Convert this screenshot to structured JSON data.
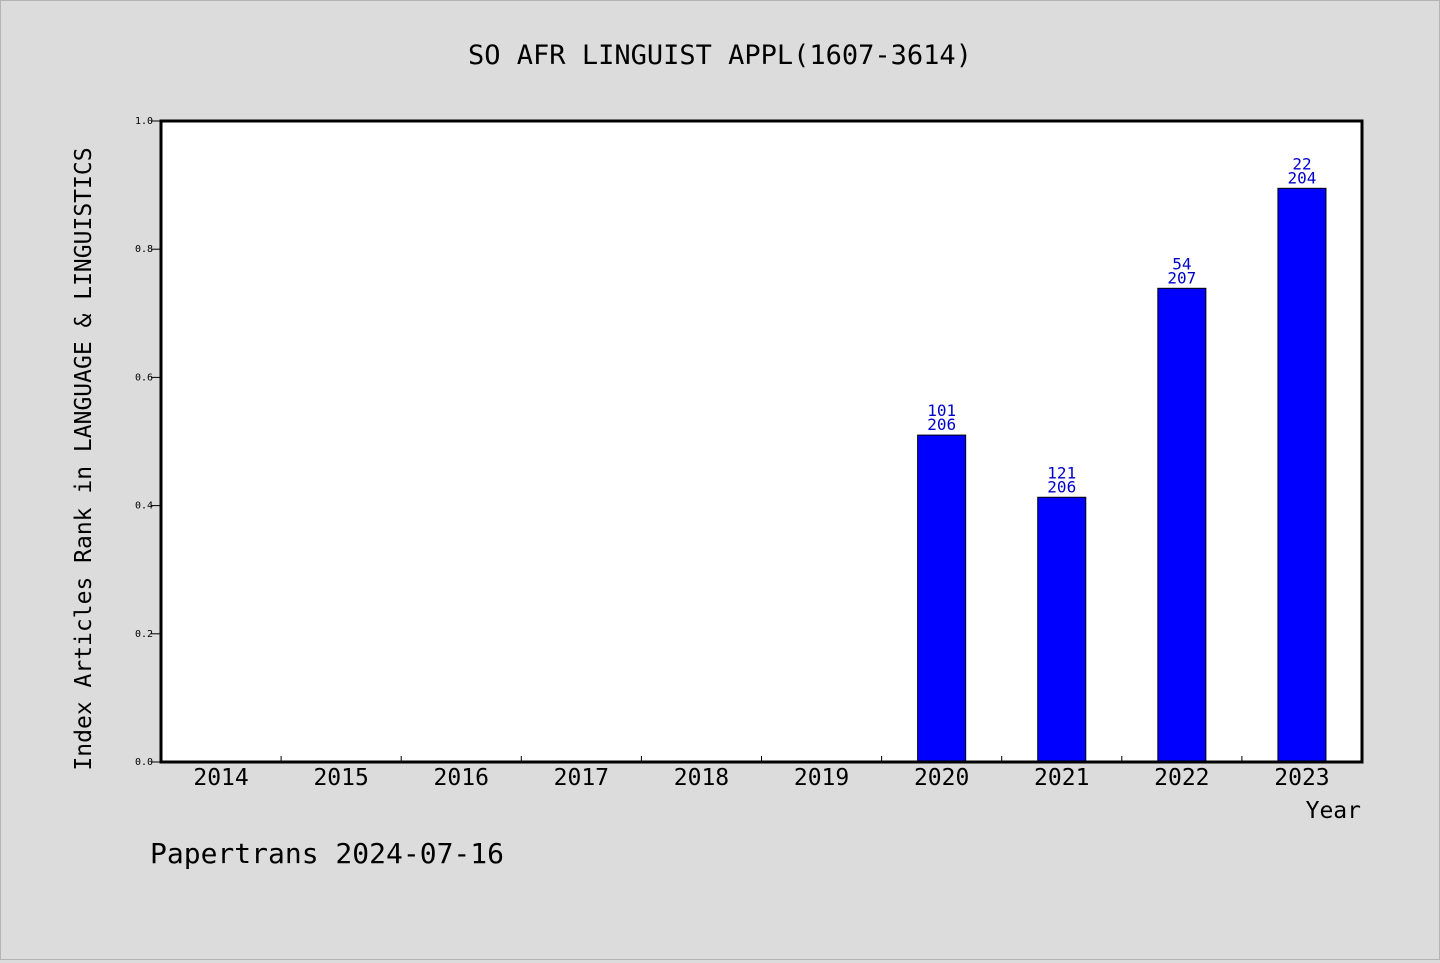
{
  "chart_data": {
    "type": "bar",
    "title": "SO AFR LINGUIST APPL(1607-3614)",
    "xlabel": "Year",
    "ylabel": "Index Articles Rank in LANGUAGE & LINGUISTICS",
    "ylim": [
      0,
      1.0
    ],
    "yticks": [
      "0.0",
      "0.2",
      "0.4",
      "0.6",
      "0.8",
      "1.0"
    ],
    "grid": false,
    "categories": [
      "2014",
      "2015",
      "2016",
      "2017",
      "2018",
      "2019",
      "2020",
      "2021",
      "2022",
      "2023"
    ],
    "values": [
      null,
      null,
      null,
      null,
      null,
      null,
      0.51,
      0.413,
      0.739,
      0.895
    ],
    "rank_labels": [
      null,
      null,
      null,
      null,
      null,
      null,
      "101",
      "121",
      "54",
      "22"
    ],
    "total_labels": [
      null,
      null,
      null,
      null,
      null,
      null,
      "206",
      "206",
      "207",
      "204"
    ],
    "bar_color": "#0000ff",
    "label_color": "#0000cc"
  },
  "footer": {
    "text": "Papertrans 2024-07-16"
  }
}
